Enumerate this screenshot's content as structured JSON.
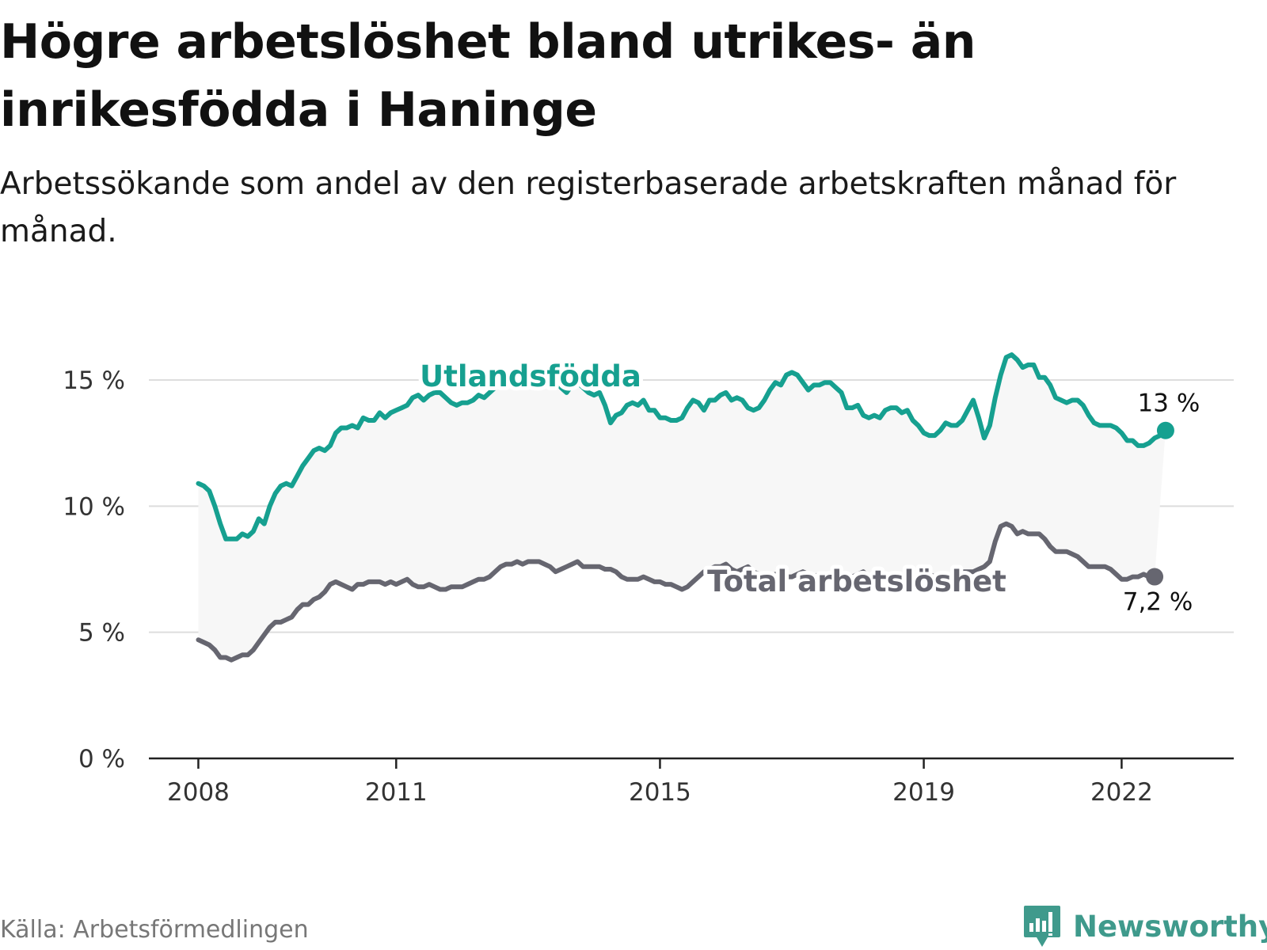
{
  "header": {
    "title": "Högre arbetslöshet bland utrikes- än inrikesfödda i Haninge",
    "subtitle": "Arbetssökande som andel av den registerbaserade arbetskraften månad för månad."
  },
  "footer": {
    "source": "Källa: Arbetsförmedlingen",
    "brand": "Newsworthy"
  },
  "chart_data": {
    "type": "line",
    "title": "Högre arbetslöshet bland utrikes- än inrikesfödda i Haninge",
    "xlabel": "",
    "ylabel": "",
    "x_start": 2008.0,
    "x_step_months": 1,
    "xlim": [
      2007.25,
      2023.7
    ],
    "ylim": [
      0,
      15
    ],
    "y_ticks": [
      0,
      5,
      10,
      15
    ],
    "y_tick_labels": [
      "0 %",
      "5 %",
      "10 %",
      "15 %"
    ],
    "x_ticks": [
      2008,
      2011,
      2015,
      2019,
      2022
    ],
    "x_tick_labels": [
      "2008",
      "2011",
      "2015",
      "2019",
      "2022"
    ],
    "series": [
      {
        "name": "Utlandsfödda",
        "color": "#16a090",
        "end_label": "13 %",
        "values": [
          10.9,
          10.8,
          10.6,
          10.0,
          9.3,
          8.7,
          8.7,
          8.7,
          8.9,
          8.8,
          9.0,
          9.5,
          9.3,
          10.0,
          10.5,
          10.8,
          10.9,
          10.8,
          11.2,
          11.6,
          11.9,
          12.2,
          12.3,
          12.2,
          12.4,
          12.9,
          13.1,
          13.1,
          13.2,
          13.1,
          13.5,
          13.4,
          13.4,
          13.7,
          13.5,
          13.7,
          13.8,
          13.9,
          14.0,
          14.3,
          14.4,
          14.2,
          14.4,
          14.5,
          14.5,
          14.3,
          14.1,
          14.0,
          14.1,
          14.1,
          14.2,
          14.4,
          14.3,
          14.5,
          14.7,
          14.9,
          15.0,
          15.1,
          15.1,
          15.0,
          15.1,
          15.2,
          15.0,
          14.8,
          14.9,
          15.0,
          14.7,
          14.5,
          14.8,
          14.9,
          14.7,
          14.5,
          14.4,
          14.5,
          14.0,
          13.3,
          13.6,
          13.7,
          14.0,
          14.1,
          14.0,
          14.2,
          13.8,
          13.8,
          13.5,
          13.5,
          13.4,
          13.4,
          13.5,
          13.9,
          14.2,
          14.1,
          13.8,
          14.2,
          14.2,
          14.4,
          14.5,
          14.2,
          14.3,
          14.2,
          13.9,
          13.8,
          13.9,
          14.2,
          14.6,
          14.9,
          14.8,
          15.2,
          15.3,
          15.2,
          14.9,
          14.6,
          14.8,
          14.8,
          14.9,
          14.9,
          14.7,
          14.5,
          13.9,
          13.9,
          14.0,
          13.6,
          13.5,
          13.6,
          13.5,
          13.8,
          13.9,
          13.9,
          13.7,
          13.8,
          13.4,
          13.2,
          12.9,
          12.8,
          12.8,
          13.0,
          13.3,
          13.2,
          13.2,
          13.4,
          13.8,
          14.2,
          13.5,
          12.7,
          13.2,
          14.3,
          15.2,
          15.9,
          16.0,
          15.8,
          15.5,
          15.6,
          15.6,
          15.1,
          15.1,
          14.8,
          14.3,
          14.2,
          14.1,
          14.2,
          14.2,
          14.0,
          13.6,
          13.3,
          13.2,
          13.2,
          13.2,
          13.1,
          12.9,
          12.6,
          12.6,
          12.4,
          12.4,
          12.5,
          12.7,
          12.8,
          13.0
        ]
      },
      {
        "name": "Total arbetslöshet",
        "color": "#666670",
        "end_label": "7,2 %",
        "values": [
          4.7,
          4.6,
          4.5,
          4.3,
          4.0,
          4.0,
          3.9,
          4.0,
          4.1,
          4.1,
          4.3,
          4.6,
          4.9,
          5.2,
          5.4,
          5.4,
          5.5,
          5.6,
          5.9,
          6.1,
          6.1,
          6.3,
          6.4,
          6.6,
          6.9,
          7.0,
          6.9,
          6.8,
          6.7,
          6.9,
          6.9,
          7.0,
          7.0,
          7.0,
          6.9,
          7.0,
          6.9,
          7.0,
          7.1,
          6.9,
          6.8,
          6.8,
          6.9,
          6.8,
          6.7,
          6.7,
          6.8,
          6.8,
          6.8,
          6.9,
          7.0,
          7.1,
          7.1,
          7.2,
          7.4,
          7.6,
          7.7,
          7.7,
          7.8,
          7.7,
          7.8,
          7.8,
          7.8,
          7.7,
          7.6,
          7.4,
          7.5,
          7.6,
          7.7,
          7.8,
          7.6,
          7.6,
          7.6,
          7.6,
          7.5,
          7.5,
          7.4,
          7.2,
          7.1,
          7.1,
          7.1,
          7.2,
          7.1,
          7.0,
          7.0,
          6.9,
          6.9,
          6.8,
          6.7,
          6.8,
          7.0,
          7.2,
          7.4,
          7.5,
          7.6,
          7.6,
          7.7,
          7.5,
          7.4,
          7.5,
          7.6,
          7.4,
          7.3,
          7.2,
          7.2,
          7.3,
          7.3,
          7.2,
          7.2,
          7.3,
          7.4,
          7.3,
          7.2,
          7.3,
          7.3,
          7.2,
          7.2,
          7.3,
          7.3,
          7.2,
          7.3,
          7.4,
          7.2,
          7.2,
          7.3,
          7.3,
          7.2,
          7.3,
          7.3,
          7.3,
          7.2,
          7.2,
          7.3,
          7.3,
          7.2,
          7.3,
          7.3,
          7.3,
          7.4,
          7.4,
          7.4,
          7.4,
          7.5,
          7.6,
          7.8,
          8.6,
          9.2,
          9.3,
          9.2,
          8.9,
          9.0,
          8.9,
          8.9,
          8.9,
          8.7,
          8.4,
          8.2,
          8.2,
          8.2,
          8.1,
          8.0,
          7.8,
          7.6,
          7.6,
          7.6,
          7.6,
          7.5,
          7.3,
          7.1,
          7.1,
          7.2,
          7.2,
          7.3,
          7.2,
          7.2
        ]
      }
    ],
    "annotations": [
      {
        "text": "Utlandsfödda",
        "series": "Utlandsfödda"
      },
      {
        "text": "Total arbetslöshet",
        "series": "Total arbetslöshet"
      }
    ]
  }
}
